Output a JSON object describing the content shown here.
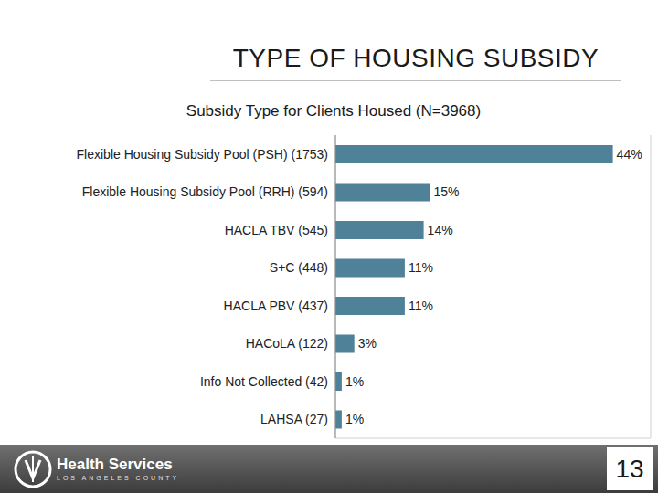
{
  "chart_data": {
    "type": "bar",
    "title": "Subsidy Type for Clients Housed (N=3968)",
    "orientation": "horizontal",
    "categories": [
      "Flexible Housing Subsidy Pool (PSH) (1753)",
      "Flexible Housing Subsidy Pool (RRH) (594)",
      "HACLA TBV (545)",
      "S+C (448)",
      "HACLA PBV (437)",
      "HACoLA (122)",
      "Info Not Collected (42)",
      "LAHSA (27)"
    ],
    "values": [
      44,
      15,
      14,
      11,
      11,
      3,
      1,
      1
    ],
    "value_labels": [
      "44%",
      "15%",
      "14%",
      "11%",
      "11%",
      "3%",
      "1%",
      "1%"
    ],
    "color": "#4f8198",
    "xlim": [
      0,
      50
    ],
    "xticks": [
      0,
      5,
      10,
      15,
      20,
      25,
      30,
      35,
      40,
      45,
      50
    ],
    "grid": true,
    "data_labels": true,
    "tick_labels": "y"
  },
  "page": {
    "heading": "TYPE OF HOUSING SUBSIDY",
    "logo_text": "Health Services",
    "logo_subtext": "LOS ANGELES COUNTY",
    "number": 13
  }
}
